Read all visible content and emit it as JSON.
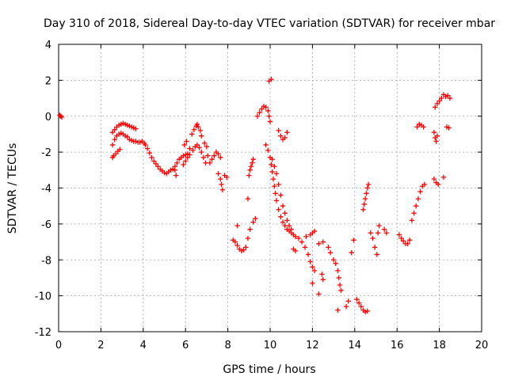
{
  "chart_data": {
    "type": "scatter",
    "title": "Day 310 of 2018, Sidereal Day-to-day VTEC variation (SDTVAR) for receiver mbar",
    "xlabel": "GPS time / hours",
    "ylabel": "SDTVAR / TECUs",
    "xlim": [
      0,
      20
    ],
    "ylim": [
      -12,
      4
    ],
    "xticks": [
      "0",
      "2",
      "4",
      "6",
      "8",
      "10",
      "12",
      "14",
      "16",
      "18",
      "20"
    ],
    "yticks": [
      "4",
      "2",
      "0",
      "-2",
      "-4",
      "-6",
      "-8",
      "-10",
      "-12"
    ],
    "grid": true,
    "marker": "+",
    "color": "#ff0000",
    "series": [
      {
        "name": "SDTVAR",
        "points": [
          [
            0.05,
            0.05
          ],
          [
            0.1,
            0.0
          ],
          [
            0.15,
            -0.05
          ],
          [
            2.55,
            -1.6
          ],
          [
            2.65,
            -1.3
          ],
          [
            2.75,
            -1.1
          ],
          [
            2.85,
            -1.0
          ],
          [
            2.95,
            -0.95
          ],
          [
            3.05,
            -1.0
          ],
          [
            3.15,
            -1.1
          ],
          [
            3.25,
            -1.15
          ],
          [
            3.35,
            -1.3
          ],
          [
            3.45,
            -1.35
          ],
          [
            3.55,
            -1.4
          ],
          [
            3.65,
            -1.4
          ],
          [
            3.75,
            -1.45
          ],
          [
            3.85,
            -1.45
          ],
          [
            3.95,
            -1.4
          ],
          [
            4.05,
            -1.5
          ],
          [
            2.55,
            -0.9
          ],
          [
            2.65,
            -0.75
          ],
          [
            2.75,
            -0.6
          ],
          [
            2.85,
            -0.5
          ],
          [
            2.95,
            -0.45
          ],
          [
            3.05,
            -0.4
          ],
          [
            3.15,
            -0.45
          ],
          [
            3.25,
            -0.5
          ],
          [
            3.35,
            -0.55
          ],
          [
            3.45,
            -0.6
          ],
          [
            3.55,
            -0.65
          ],
          [
            3.65,
            -0.7
          ],
          [
            2.55,
            -2.3
          ],
          [
            2.6,
            -2.2
          ],
          [
            2.7,
            -2.1
          ],
          [
            2.8,
            -1.95
          ],
          [
            2.9,
            -1.85
          ],
          [
            4.1,
            -1.6
          ],
          [
            4.2,
            -1.8
          ],
          [
            4.3,
            -2.05
          ],
          [
            4.4,
            -2.3
          ],
          [
            4.5,
            -2.5
          ],
          [
            4.6,
            -2.65
          ],
          [
            4.7,
            -2.8
          ],
          [
            4.8,
            -2.95
          ],
          [
            4.9,
            -3.05
          ],
          [
            5.0,
            -3.15
          ],
          [
            5.1,
            -3.2
          ],
          [
            5.2,
            -3.1
          ],
          [
            5.3,
            -3.0
          ],
          [
            5.4,
            -2.95
          ],
          [
            5.5,
            -3.0
          ],
          [
            5.55,
            -3.3
          ],
          [
            5.5,
            -2.8
          ],
          [
            5.6,
            -2.6
          ],
          [
            5.7,
            -2.4
          ],
          [
            5.8,
            -2.3
          ],
          [
            5.9,
            -2.2
          ],
          [
            6.0,
            -2.15
          ],
          [
            6.1,
            -2.1
          ],
          [
            6.2,
            -2.15
          ],
          [
            5.9,
            -2.7
          ],
          [
            6.0,
            -2.5
          ],
          [
            6.1,
            -2.3
          ],
          [
            5.95,
            -1.6
          ],
          [
            6.05,
            -1.4
          ],
          [
            6.2,
            -1.8
          ],
          [
            6.3,
            -1.0
          ],
          [
            6.4,
            -0.75
          ],
          [
            6.5,
            -0.55
          ],
          [
            6.55,
            -0.45
          ],
          [
            6.6,
            -0.6
          ],
          [
            6.7,
            -0.8
          ],
          [
            6.75,
            -1.1
          ],
          [
            6.35,
            -1.9
          ],
          [
            6.45,
            -1.7
          ],
          [
            6.55,
            -1.6
          ],
          [
            6.65,
            -1.75
          ],
          [
            6.75,
            -2.0
          ],
          [
            6.85,
            -2.3
          ],
          [
            6.95,
            -2.6
          ],
          [
            6.9,
            -1.5
          ],
          [
            7.0,
            -1.7
          ],
          [
            7.05,
            -2.2
          ],
          [
            7.15,
            -2.6
          ],
          [
            7.25,
            -2.4
          ],
          [
            7.35,
            -2.2
          ],
          [
            7.45,
            -2.0
          ],
          [
            7.55,
            -2.1
          ],
          [
            7.65,
            -2.3
          ],
          [
            7.55,
            -3.2
          ],
          [
            7.65,
            -3.5
          ],
          [
            7.7,
            -3.8
          ],
          [
            7.75,
            -4.1
          ],
          [
            7.95,
            -3.4
          ],
          [
            7.85,
            -3.3
          ],
          [
            8.25,
            -6.9
          ],
          [
            8.35,
            -7.0
          ],
          [
            8.45,
            -7.2
          ],
          [
            8.55,
            -7.4
          ],
          [
            8.65,
            -7.5
          ],
          [
            8.75,
            -7.45
          ],
          [
            8.85,
            -7.3
          ],
          [
            8.95,
            -6.8
          ],
          [
            9.05,
            -6.3
          ],
          [
            9.2,
            -5.9
          ],
          [
            9.3,
            -5.7
          ],
          [
            8.45,
            -6.1
          ],
          [
            8.95,
            -4.6
          ],
          [
            9.0,
            -3.3
          ],
          [
            9.05,
            -3.0
          ],
          [
            9.1,
            -2.8
          ],
          [
            9.15,
            -2.6
          ],
          [
            9.2,
            -2.4
          ],
          [
            9.4,
            0.0
          ],
          [
            9.5,
            0.2
          ],
          [
            9.6,
            0.4
          ],
          [
            9.7,
            0.55
          ],
          [
            9.8,
            0.5
          ],
          [
            9.9,
            0.3
          ],
          [
            9.95,
            0.0
          ],
          [
            10.0,
            -0.3
          ],
          [
            9.95,
            1.95
          ],
          [
            10.05,
            2.05
          ],
          [
            9.8,
            -1.6
          ],
          [
            9.9,
            -1.9
          ],
          [
            10.0,
            -2.3
          ],
          [
            10.05,
            -2.7
          ],
          [
            10.1,
            -3.1
          ],
          [
            10.15,
            -3.5
          ],
          [
            10.2,
            -3.9
          ],
          [
            10.25,
            -4.3
          ],
          [
            10.3,
            -4.7
          ],
          [
            10.4,
            -5.2
          ],
          [
            10.5,
            -5.6
          ],
          [
            10.6,
            -5.9
          ],
          [
            10.7,
            -6.1
          ],
          [
            10.8,
            -6.3
          ],
          [
            10.9,
            -6.4
          ],
          [
            11.0,
            -6.5
          ],
          [
            11.1,
            -6.6
          ],
          [
            11.2,
            -6.7
          ],
          [
            10.1,
            -2.4
          ],
          [
            10.2,
            -2.8
          ],
          [
            10.3,
            -3.2
          ],
          [
            10.4,
            -3.8
          ],
          [
            10.5,
            -4.4
          ],
          [
            10.6,
            -5.0
          ],
          [
            10.7,
            -5.4
          ],
          [
            10.8,
            -5.8
          ],
          [
            10.9,
            -6.1
          ],
          [
            11.0,
            -6.3
          ],
          [
            10.4,
            -0.8
          ],
          [
            10.5,
            -1.1
          ],
          [
            10.6,
            -1.3
          ],
          [
            10.7,
            -1.2
          ],
          [
            10.8,
            -0.9
          ],
          [
            11.1,
            -7.4
          ],
          [
            11.2,
            -7.5
          ],
          [
            11.35,
            -6.8
          ],
          [
            11.5,
            -7.0
          ],
          [
            11.65,
            -7.3
          ],
          [
            11.8,
            -7.7
          ],
          [
            11.9,
            -8.1
          ],
          [
            12.0,
            -8.4
          ],
          [
            12.1,
            -8.6
          ],
          [
            11.7,
            -6.7
          ],
          [
            11.9,
            -6.6
          ],
          [
            12.0,
            -6.5
          ],
          [
            12.1,
            -6.4
          ],
          [
            12.0,
            -9.3
          ],
          [
            12.3,
            -9.9
          ],
          [
            12.45,
            -8.8
          ],
          [
            12.5,
            -9.1
          ],
          [
            12.3,
            -7.1
          ],
          [
            12.5,
            -7.0
          ],
          [
            12.75,
            -7.3
          ],
          [
            12.85,
            -7.6
          ],
          [
            13.0,
            -8.0
          ],
          [
            13.1,
            -8.2
          ],
          [
            13.2,
            -8.6
          ],
          [
            13.25,
            -9.0
          ],
          [
            13.3,
            -9.4
          ],
          [
            13.35,
            -9.7
          ],
          [
            13.2,
            -10.8
          ],
          [
            13.6,
            -10.6
          ],
          [
            13.7,
            -10.3
          ],
          [
            13.85,
            -7.6
          ],
          [
            13.95,
            -6.9
          ],
          [
            14.1,
            -10.2
          ],
          [
            14.2,
            -10.4
          ],
          [
            14.3,
            -10.6
          ],
          [
            14.4,
            -10.8
          ],
          [
            14.5,
            -10.9
          ],
          [
            14.6,
            -10.85
          ],
          [
            14.4,
            -5.2
          ],
          [
            14.45,
            -4.9
          ],
          [
            14.5,
            -4.6
          ],
          [
            14.55,
            -4.3
          ],
          [
            14.6,
            -4.0
          ],
          [
            14.65,
            -3.8
          ],
          [
            14.75,
            -6.5
          ],
          [
            14.85,
            -6.8
          ],
          [
            14.95,
            -7.3
          ],
          [
            15.05,
            -7.7
          ],
          [
            15.1,
            -6.5
          ],
          [
            15.15,
            -6.1
          ],
          [
            15.4,
            -6.3
          ],
          [
            15.5,
            -6.5
          ],
          [
            16.1,
            -6.6
          ],
          [
            16.2,
            -6.8
          ],
          [
            16.3,
            -6.95
          ],
          [
            16.4,
            -7.1
          ],
          [
            16.5,
            -7.1
          ],
          [
            16.6,
            -6.9
          ],
          [
            16.7,
            -5.8
          ],
          [
            16.8,
            -5.4
          ],
          [
            16.9,
            -5.0
          ],
          [
            17.0,
            -4.6
          ],
          [
            17.1,
            -4.2
          ],
          [
            17.2,
            -3.9
          ],
          [
            17.3,
            -3.8
          ],
          [
            16.95,
            -0.6
          ],
          [
            17.05,
            -0.45
          ],
          [
            17.15,
            -0.5
          ],
          [
            17.25,
            -0.6
          ],
          [
            17.75,
            -0.9
          ],
          [
            17.8,
            -1.2
          ],
          [
            17.85,
            -1.4
          ],
          [
            17.9,
            -1.1
          ],
          [
            17.75,
            -3.5
          ],
          [
            17.85,
            -3.7
          ],
          [
            17.95,
            -3.8
          ],
          [
            18.2,
            -3.4
          ],
          [
            17.8,
            0.5
          ],
          [
            17.9,
            0.7
          ],
          [
            18.0,
            0.85
          ],
          [
            18.1,
            1.0
          ],
          [
            18.2,
            1.2
          ],
          [
            18.3,
            1.1
          ],
          [
            18.4,
            1.15
          ],
          [
            18.5,
            1.0
          ],
          [
            18.35,
            -0.6
          ],
          [
            18.45,
            -0.65
          ]
        ]
      }
    ]
  }
}
